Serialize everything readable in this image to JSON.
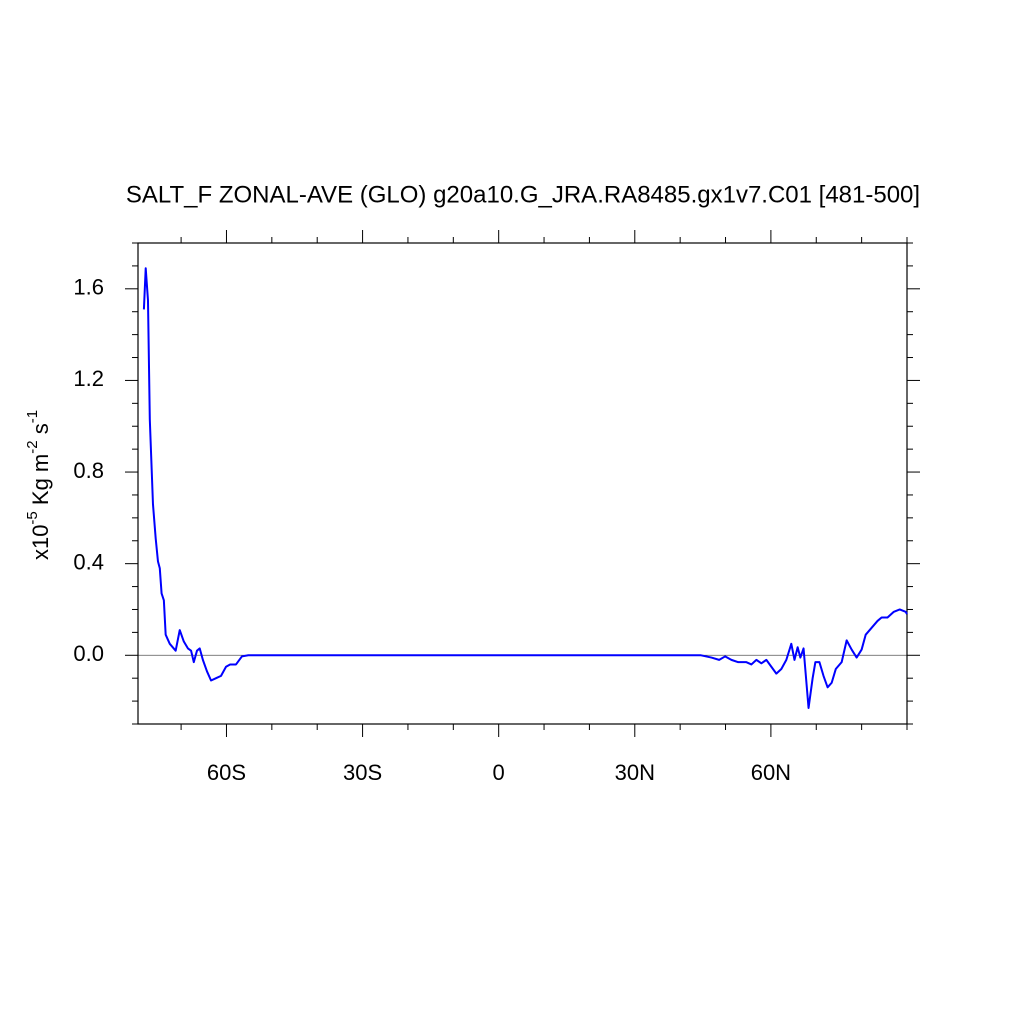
{
  "chart_data": {
    "type": "line",
    "title": "SALT_F ZONAL-AVE (GLO) g20a10.G_JRA.RA8485.gx1v7.C01 [481-500]",
    "ylabel_parts": [
      "x10",
      "-5",
      " Kg m",
      "-2",
      " s",
      "-1"
    ],
    "xlim": [
      -79.5,
      90
    ],
    "ylim": [
      -0.3,
      1.8
    ],
    "xticks": [
      {
        "value": -60,
        "label": "60S"
      },
      {
        "value": -30,
        "label": "30S"
      },
      0,
      {
        "value": 30,
        "label": "30N"
      },
      {
        "value": 60,
        "label": "60N"
      }
    ],
    "xminorticks": [
      -70,
      -50,
      -40,
      -20,
      -10,
      10,
      20,
      40,
      50,
      70,
      80,
      90
    ],
    "yticks": [
      {
        "value": 0,
        "label": "0.0"
      },
      0.4,
      0.8,
      1.2,
      1.6
    ],
    "yminorticks": [
      -0.3,
      -0.2,
      -0.1,
      0.1,
      0.2,
      0.3,
      0.5,
      0.6,
      0.7,
      0.9,
      1.0,
      1.1,
      1.3,
      1.4,
      1.5,
      1.7,
      1.8
    ],
    "zero_line": true,
    "series": [
      {
        "color": "#0000ff",
        "x": [
          -78.2,
          -77.8,
          -77.3,
          -76.9,
          -76.2,
          -75.6,
          -75.1,
          -74.7,
          -74.3,
          -73.8,
          -73.4,
          -72.5,
          -71.2,
          -70.3,
          -69.4,
          -68.5,
          -67.8,
          -67.2,
          -66.5,
          -65.9,
          -65.2,
          -64.3,
          -63.4,
          -62.3,
          -61.2,
          -60.1,
          -59.2,
          -57.9,
          -56.6,
          -55.2,
          -50,
          -40,
          -30,
          -20,
          -10,
          0,
          10,
          20,
          30,
          40,
          44.6,
          46.9,
          48.6,
          49.9,
          51.3,
          52.8,
          54.6,
          55.7,
          56.8,
          57.9,
          59.0,
          60.1,
          61.2,
          62.3,
          63.4,
          64.5,
          65.2,
          65.9,
          66.5,
          67.2,
          68.3,
          69.2,
          69.8,
          70.7,
          71.6,
          72.5,
          73.4,
          74.3,
          75.6,
          76.7,
          77.8,
          78.9,
          80.0,
          80.9,
          82.2,
          83.5,
          84.4,
          85.7,
          87.1,
          88.4,
          89.7,
          90
        ],
        "values": [
          1.51,
          1.69,
          1.55,
          1.03,
          0.66,
          0.51,
          0.41,
          0.38,
          0.27,
          0.24,
          0.09,
          0.05,
          0.02,
          0.11,
          0.06,
          0.03,
          0.02,
          -0.03,
          0.02,
          0.03,
          -0.02,
          -0.07,
          -0.11,
          -0.1,
          -0.09,
          -0.05,
          -0.04,
          -0.04,
          -0.005,
          0,
          0,
          0,
          0,
          0,
          0,
          0,
          0,
          0,
          0,
          0,
          0,
          -0.01,
          -0.02,
          -0.005,
          -0.02,
          -0.03,
          -0.03,
          -0.04,
          -0.02,
          -0.035,
          -0.02,
          -0.05,
          -0.08,
          -0.06,
          -0.02,
          0.05,
          -0.02,
          0.035,
          -0.01,
          0.03,
          -0.23,
          -0.1,
          -0.03,
          -0.03,
          -0.09,
          -0.14,
          -0.12,
          -0.06,
          -0.03,
          0.065,
          0.025,
          -0.01,
          0.025,
          0.09,
          0.12,
          0.15,
          0.165,
          0.165,
          0.19,
          0.2,
          0.19,
          0.18
        ]
      }
    ]
  }
}
